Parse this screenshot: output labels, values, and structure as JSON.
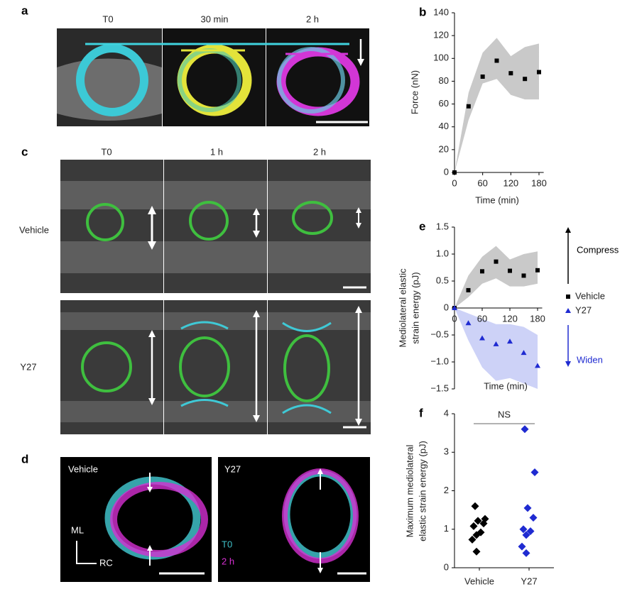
{
  "panels": {
    "a": {
      "label": "a",
      "columns": [
        "T0",
        "30 min",
        "2 h"
      ]
    },
    "c": {
      "label": "c",
      "columns": [
        "T0",
        "1 h",
        "2 h"
      ],
      "rows": [
        "Vehicle",
        "Y27"
      ]
    },
    "d": {
      "label": "d",
      "left": "Vehicle",
      "right": "Y27",
      "axis_ml": "ML",
      "axis_rc": "RC",
      "legend_t0": "T0",
      "legend_2h": "2 h"
    }
  },
  "chart_data": [
    {
      "type": "scatter",
      "label": "b",
      "xlabel": "Time (min)",
      "ylabel": [
        "Force (nN)"
      ],
      "x": [
        0,
        30,
        60,
        90,
        120,
        150,
        180
      ],
      "series": [
        {
          "color": "#000000",
          "marker": "square",
          "band_color": "#c9c9c9",
          "values": [
            0,
            58,
            84,
            98,
            87,
            82,
            88
          ],
          "band_lower": [
            0,
            46,
            78,
            82,
            68,
            64,
            64
          ],
          "band_upper": [
            0,
            70,
            105,
            118,
            102,
            110,
            113
          ]
        }
      ],
      "xlim": [
        0,
        190
      ],
      "ylim": [
        0,
        140
      ],
      "xticks": [
        0,
        60,
        120,
        180
      ],
      "yticks": [
        0,
        20,
        40,
        60,
        80,
        100,
        120,
        140
      ]
    },
    {
      "type": "scatter",
      "label": "e",
      "xlabel": "Time (min)",
      "ylabel": [
        "Mediolateral elastic",
        "strain energy (pJ)"
      ],
      "x": [
        0,
        30,
        60,
        90,
        120,
        150,
        180
      ],
      "series": [
        {
          "name": "Vehicle",
          "color": "#000000",
          "marker": "square",
          "band_color": "#c9c9c9",
          "values": [
            0,
            0.33,
            0.68,
            0.86,
            0.69,
            0.6,
            0.7
          ],
          "band_lower": [
            0,
            0.2,
            0.45,
            0.55,
            0.4,
            0.4,
            0.45
          ],
          "band_upper": [
            0,
            0.6,
            0.95,
            1.15,
            0.9,
            1.0,
            1.05
          ]
        },
        {
          "name": "Y27",
          "color": "#1f2bd1",
          "marker": "triangle",
          "band_color": "#cdd2f7",
          "values": [
            0,
            -0.28,
            -0.56,
            -0.67,
            -0.62,
            -0.83,
            -1.07
          ],
          "band_lower": [
            0,
            -0.6,
            -1.1,
            -1.35,
            -1.3,
            -1.4,
            -1.5
          ],
          "band_upper": [
            0,
            -0.1,
            -0.2,
            -0.3,
            -0.3,
            -0.35,
            -0.5
          ]
        }
      ],
      "xlim": [
        0,
        190
      ],
      "ylim": [
        -1.5,
        1.5
      ],
      "xticks": [
        0,
        60,
        120,
        180
      ],
      "yticks": [
        {
          "value": -1.5,
          "label": "−1.5"
        },
        {
          "value": -1,
          "label": "−1.0"
        },
        {
          "value": -0.5,
          "label": "−0.5"
        },
        0,
        0.5,
        {
          "value": 1,
          "label": "1.0"
        },
        1.5
      ],
      "annotations": [
        {
          "text": "Compress",
          "color": "#000000"
        },
        {
          "text": "Widen",
          "color": "#1f2bd1"
        }
      ]
    },
    {
      "type": "strip",
      "label": "f",
      "ylabel": [
        "Maximum mediolateral",
        "elastic strain energy (pJ)"
      ],
      "categories": [
        "Vehicle",
        "Y27"
      ],
      "series": [
        {
          "color": "#000000",
          "values": [
            1.6,
            1.27,
            1.22,
            1.15,
            1.08,
            0.92,
            0.85,
            0.73,
            0.42
          ]
        },
        {
          "color": "#1f2bd1",
          "values": [
            3.6,
            2.48,
            1.55,
            1.3,
            1.0,
            0.95,
            0.85,
            0.55,
            0.38
          ]
        }
      ],
      "ylim": [
        0,
        4
      ],
      "yticks": [
        0,
        1,
        2,
        3,
        4
      ],
      "annotation": "NS"
    }
  ]
}
